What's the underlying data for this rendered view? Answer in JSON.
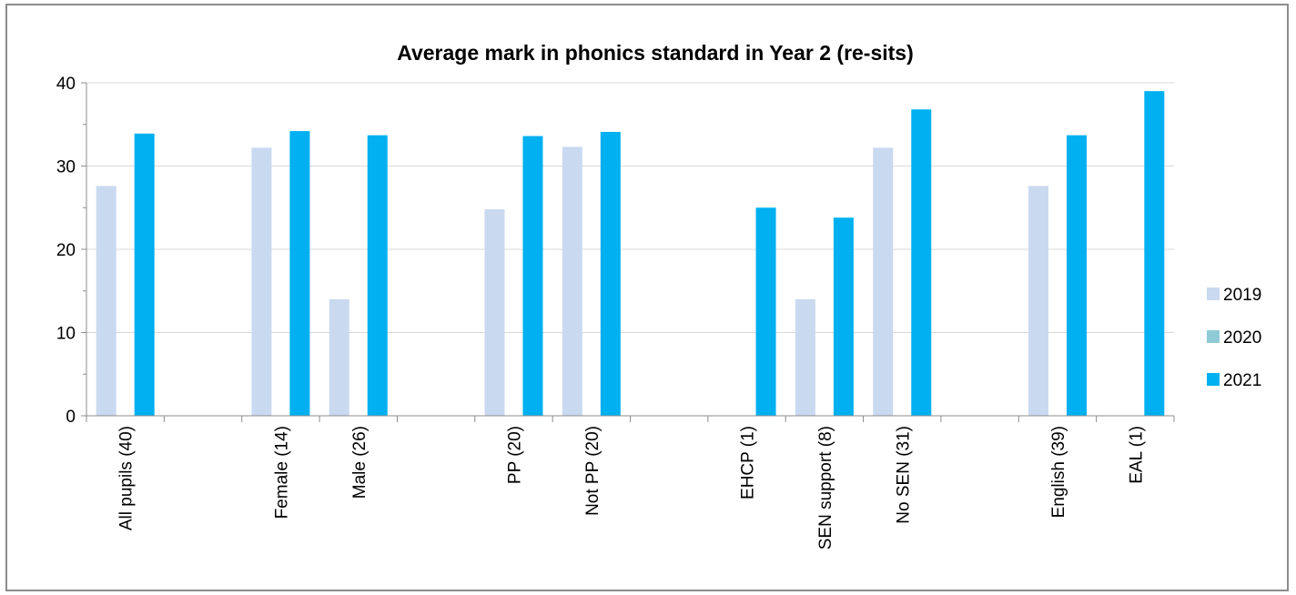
{
  "chart_data": {
    "type": "bar",
    "title": "Average mark in phonics standard in Year 2 (re-sits)",
    "xlabel": "",
    "ylabel": "",
    "ylim": [
      0,
      40
    ],
    "yticks": [
      0,
      10,
      20,
      30,
      40
    ],
    "grid": true,
    "legend_position": "right",
    "categories": [
      "All pupils (40)",
      "",
      "Female (14)",
      "Male (26)",
      "",
      "PP (20)",
      "Not PP (20)",
      "",
      "EHCP (1)",
      "SEN support (8)",
      "No SEN (31)",
      "",
      "English (39)",
      "EAL (1)"
    ],
    "series": [
      {
        "name": "2019",
        "color": "#c9d9f0",
        "values": [
          27.6,
          null,
          32.2,
          14.0,
          null,
          24.8,
          32.3,
          null,
          null,
          14.0,
          32.2,
          null,
          27.6,
          null
        ]
      },
      {
        "name": "2020",
        "color": "#8ecbd6",
        "values": [
          null,
          null,
          null,
          null,
          null,
          null,
          null,
          null,
          null,
          null,
          null,
          null,
          null,
          null
        ]
      },
      {
        "name": "2021",
        "color": "#00b0f0",
        "values": [
          33.9,
          null,
          34.2,
          33.7,
          null,
          33.6,
          34.1,
          null,
          25.0,
          23.8,
          36.8,
          null,
          33.7,
          39.0
        ]
      }
    ]
  }
}
